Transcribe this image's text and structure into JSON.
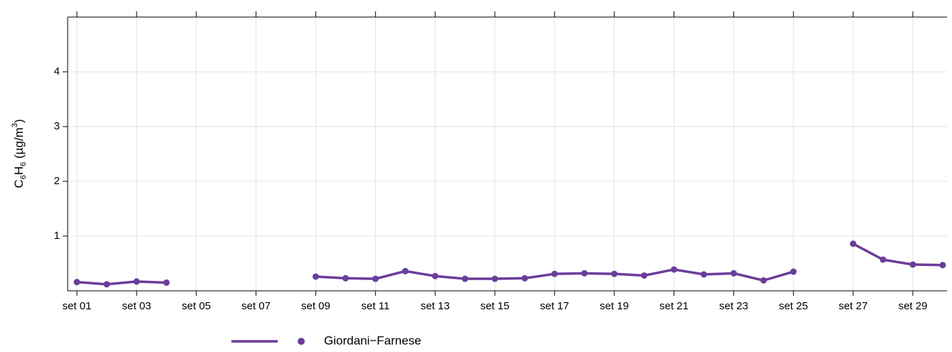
{
  "chart_data": {
    "type": "line",
    "y_label": [
      "C",
      "6",
      "H",
      "6",
      " (µg/m",
      "3",
      ")"
    ],
    "x": [
      "set 01",
      null,
      "set 03",
      null,
      "set 05",
      null,
      "set 07",
      null,
      "set 09",
      null,
      "set 11",
      null,
      "set 13",
      null,
      "set 15",
      null,
      "set 17",
      null,
      "set 19",
      null,
      "set 21",
      null,
      "set 23",
      null,
      "set 25",
      null,
      "set 27",
      null,
      "set 29",
      null
    ],
    "series": [
      {
        "name": "Giordani−Farnese",
        "color": "#6a3d9a",
        "values": [
          0.16,
          0.12,
          0.17,
          0.15,
          null,
          null,
          null,
          null,
          0.26,
          0.23,
          0.22,
          0.36,
          0.27,
          0.22,
          0.22,
          0.23,
          0.31,
          0.32,
          0.31,
          0.28,
          0.39,
          0.3,
          0.32,
          0.19,
          0.35,
          null,
          0.86,
          0.57,
          0.48,
          0.47
        ]
      }
    ],
    "ylim": [
      0,
      5
    ],
    "yticks": [
      1,
      2,
      3,
      4
    ],
    "grid": true,
    "legend": "bottom"
  }
}
